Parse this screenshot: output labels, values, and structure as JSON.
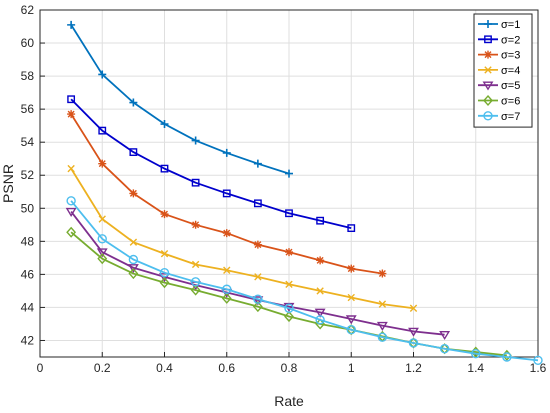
{
  "chart_data": {
    "type": "line",
    "title": "",
    "xlabel": "Rate",
    "ylabel": "PSNR",
    "xlim": [
      0,
      1.6
    ],
    "ylim": [
      41,
      62
    ],
    "xticks": [
      "0",
      "0.2",
      "0.4",
      "0.6",
      "0.8",
      "1",
      "1.2",
      "1.4",
      "1.6"
    ],
    "yticks": [
      "42",
      "44",
      "46",
      "48",
      "50",
      "52",
      "54",
      "56",
      "58",
      "60",
      "62"
    ],
    "grid": true,
    "legend_position": "top-right",
    "series": [
      {
        "name": "σ=1",
        "color": "#0072BD",
        "marker": "plus",
        "x": [
          0.1,
          0.2,
          0.3,
          0.4,
          0.5,
          0.6,
          0.7,
          0.8
        ],
        "y": [
          61.1,
          58.1,
          56.4,
          55.1,
          54.1,
          53.35,
          52.7,
          52.1
        ]
      },
      {
        "name": "σ=2",
        "color": "#0000CC",
        "marker": "square",
        "x": [
          0.1,
          0.2,
          0.3,
          0.4,
          0.5,
          0.6,
          0.7,
          0.8,
          0.9,
          1.0
        ],
        "y": [
          56.6,
          54.7,
          53.4,
          52.4,
          51.55,
          50.9,
          50.3,
          49.7,
          49.25,
          48.8
        ]
      },
      {
        "name": "σ=3",
        "color": "#D95319",
        "marker": "asterisk",
        "x": [
          0.1,
          0.2,
          0.3,
          0.4,
          0.5,
          0.6,
          0.7,
          0.8,
          0.9,
          1.0,
          1.1
        ],
        "y": [
          55.7,
          52.7,
          50.9,
          49.65,
          49.0,
          48.5,
          47.8,
          47.35,
          46.85,
          46.35,
          46.05
        ]
      },
      {
        "name": "σ=4",
        "color": "#EDB120",
        "marker": "x",
        "x": [
          0.1,
          0.2,
          0.3,
          0.4,
          0.5,
          0.6,
          0.7,
          0.8,
          0.9,
          1.0,
          1.1,
          1.2
        ],
        "y": [
          52.4,
          49.35,
          47.95,
          47.25,
          46.6,
          46.25,
          45.85,
          45.4,
          45.0,
          44.6,
          44.2,
          43.95
        ]
      },
      {
        "name": "σ=5",
        "color": "#7E2F8E",
        "marker": "triangle-down",
        "x": [
          0.1,
          0.2,
          0.3,
          0.4,
          0.5,
          0.6,
          0.7,
          0.8,
          0.9,
          1.0,
          1.1,
          1.2,
          1.3
        ],
        "y": [
          49.8,
          47.35,
          46.4,
          45.85,
          45.35,
          44.9,
          44.45,
          44.05,
          43.7,
          43.3,
          42.9,
          42.55,
          42.35
        ]
      },
      {
        "name": "σ=6",
        "color": "#77AC30",
        "marker": "diamond",
        "x": [
          0.1,
          0.2,
          0.3,
          0.4,
          0.5,
          0.6,
          0.7,
          0.8,
          0.9,
          1.0,
          1.1,
          1.2,
          1.3,
          1.4,
          1.5
        ],
        "y": [
          48.55,
          46.95,
          46.05,
          45.5,
          45.05,
          44.55,
          44.05,
          43.45,
          43.0,
          42.65,
          42.25,
          41.85,
          41.5,
          41.3,
          41.1
        ]
      },
      {
        "name": "σ=7",
        "color": "#4DBEEE",
        "marker": "circle",
        "x": [
          0.1,
          0.2,
          0.3,
          0.4,
          0.5,
          0.6,
          0.7,
          0.8,
          0.9,
          1.0,
          1.1,
          1.2,
          1.3,
          1.4,
          1.5,
          1.6
        ],
        "y": [
          50.45,
          48.15,
          46.9,
          46.1,
          45.55,
          45.1,
          44.5,
          43.95,
          43.25,
          42.65,
          42.2,
          41.85,
          41.5,
          41.2,
          41.0,
          40.8
        ]
      }
    ]
  }
}
